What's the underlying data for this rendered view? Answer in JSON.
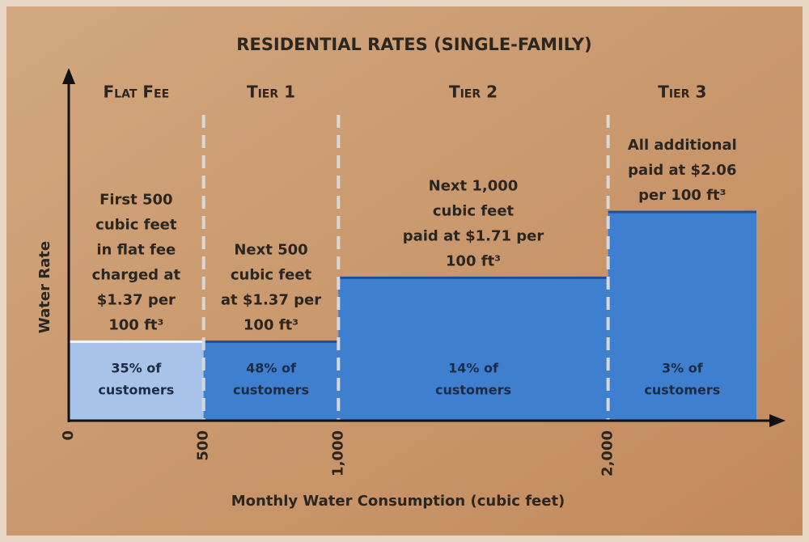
{
  "chart_data": {
    "type": "step",
    "title": "RESIDENTIAL RATES (SINGLE-FAMILY)",
    "xlabel": "Monthly Water Consumption (cubic feet)",
    "ylabel": "Water Rate",
    "categories": [
      "Flat Fee",
      "Tier 1",
      "Tier 2",
      "Tier 3"
    ],
    "x": [
      0,
      500,
      1000,
      2000
    ],
    "values": [
      1.37,
      1.37,
      1.71,
      2.06
    ],
    "colors": [
      "#a9c2ea",
      "#3f7fcf",
      "#3f7fcf",
      "#3f7fcf"
    ],
    "descriptions": [
      [
        "First 500",
        "cubic feet",
        "in flat fee",
        "charged at",
        "$1.37 per",
        "100 ft³"
      ],
      [
        "Next 500",
        "cubic feet",
        "at $1.37 per",
        "100 ft³"
      ],
      [
        "Next 1,000",
        "cubic feet",
        "paid at $1.71 per",
        "100 ft³"
      ],
      [
        "All additional",
        "paid at $2.06",
        "per 100 ft³"
      ]
    ],
    "share_labels": [
      [
        "35% of",
        "customers"
      ],
      [
        "48% of",
        "customers"
      ],
      [
        "14% of",
        "customers"
      ],
      [
        "3% of",
        "customers"
      ]
    ],
    "xlim": [
      0,
      2550
    ],
    "xticks": [
      0,
      500,
      {
        "value": 1000,
        "label": "1,000"
      },
      {
        "value": 2000,
        "label": "2,000"
      }
    ],
    "ylim": [
      0.95,
      2.8
    ]
  }
}
